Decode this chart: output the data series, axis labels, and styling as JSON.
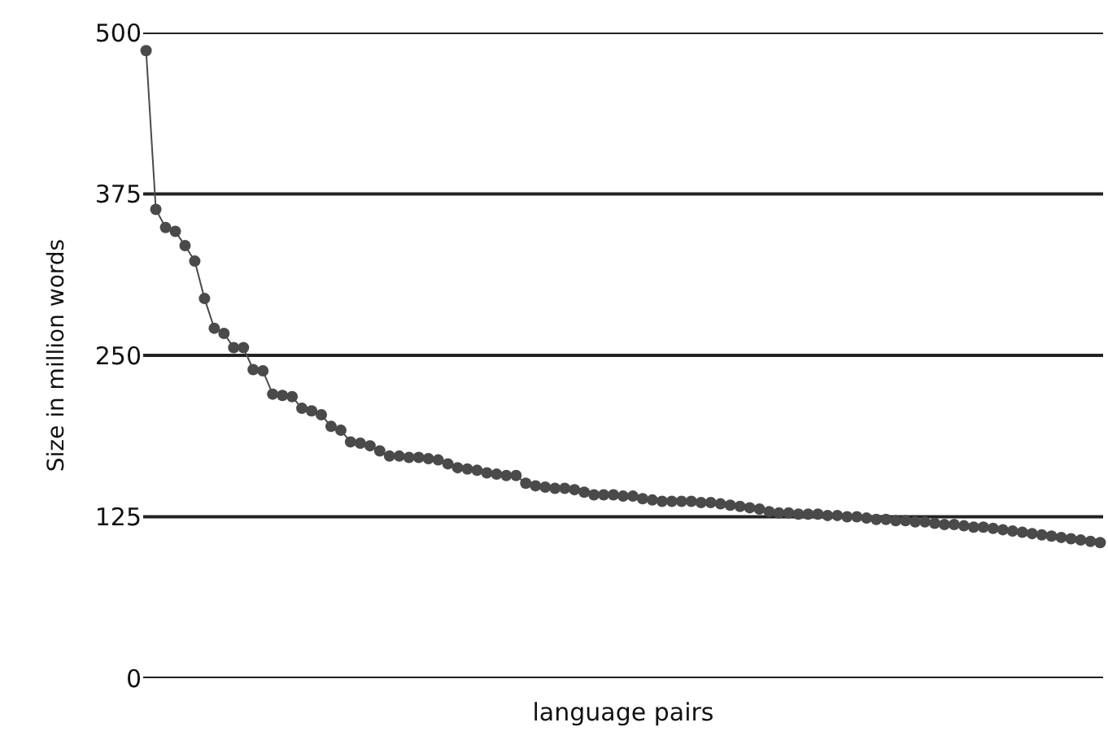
{
  "chart_data": {
    "type": "line",
    "xlabel": "language pairs",
    "ylabel": "Size in million words",
    "categories": [
      null,
      null,
      null,
      null,
      null,
      null,
      null,
      null,
      null,
      null,
      null,
      null,
      null,
      null,
      null,
      null,
      null,
      null,
      null,
      null,
      null,
      null,
      null,
      null,
      null,
      null,
      null,
      null,
      null,
      null,
      null,
      null,
      null,
      null,
      null,
      null,
      null,
      null,
      null,
      null,
      null,
      null,
      null,
      null,
      null,
      null,
      null,
      null,
      null,
      null,
      null,
      null,
      null,
      null,
      null,
      null,
      null,
      null,
      null,
      null,
      null,
      null,
      null,
      null,
      null,
      null,
      null,
      null,
      null,
      null,
      null,
      null,
      null,
      null,
      null,
      null,
      null,
      null,
      null,
      null,
      null,
      null,
      null,
      null,
      null,
      null,
      null,
      null,
      null,
      null,
      null,
      null,
      null,
      null,
      null,
      null,
      null,
      null,
      null
    ],
    "series": [
      {
        "color": "#4a4a4a",
        "values": [
          486,
          363,
          349,
          346,
          335,
          323,
          294,
          271,
          267,
          256,
          256,
          239,
          238,
          220,
          219,
          218,
          209,
          207,
          204,
          195,
          192,
          183,
          182,
          180,
          176,
          172,
          172,
          171,
          171,
          170,
          169,
          166,
          163,
          162,
          161,
          159,
          158,
          157,
          157,
          151,
          149,
          148,
          147,
          147,
          146,
          144,
          142,
          142,
          142,
          141,
          141,
          139,
          138,
          137,
          137,
          137,
          137,
          136,
          136,
          135,
          134,
          133,
          132,
          131,
          129,
          128,
          128,
          127,
          127,
          127,
          126,
          126,
          125,
          125,
          124,
          123,
          123,
          122,
          122,
          121,
          121,
          120,
          119,
          119,
          118,
          117,
          117,
          116,
          115,
          114,
          113,
          112,
          111,
          110,
          109,
          108,
          107,
          106,
          105
        ]
      }
    ],
    "ylim": [
      0,
      500
    ],
    "yticks": [
      0,
      125,
      250,
      375,
      500
    ],
    "grid": "y",
    "marker": "circle",
    "line_style": "solid",
    "tick_labels": "y"
  }
}
